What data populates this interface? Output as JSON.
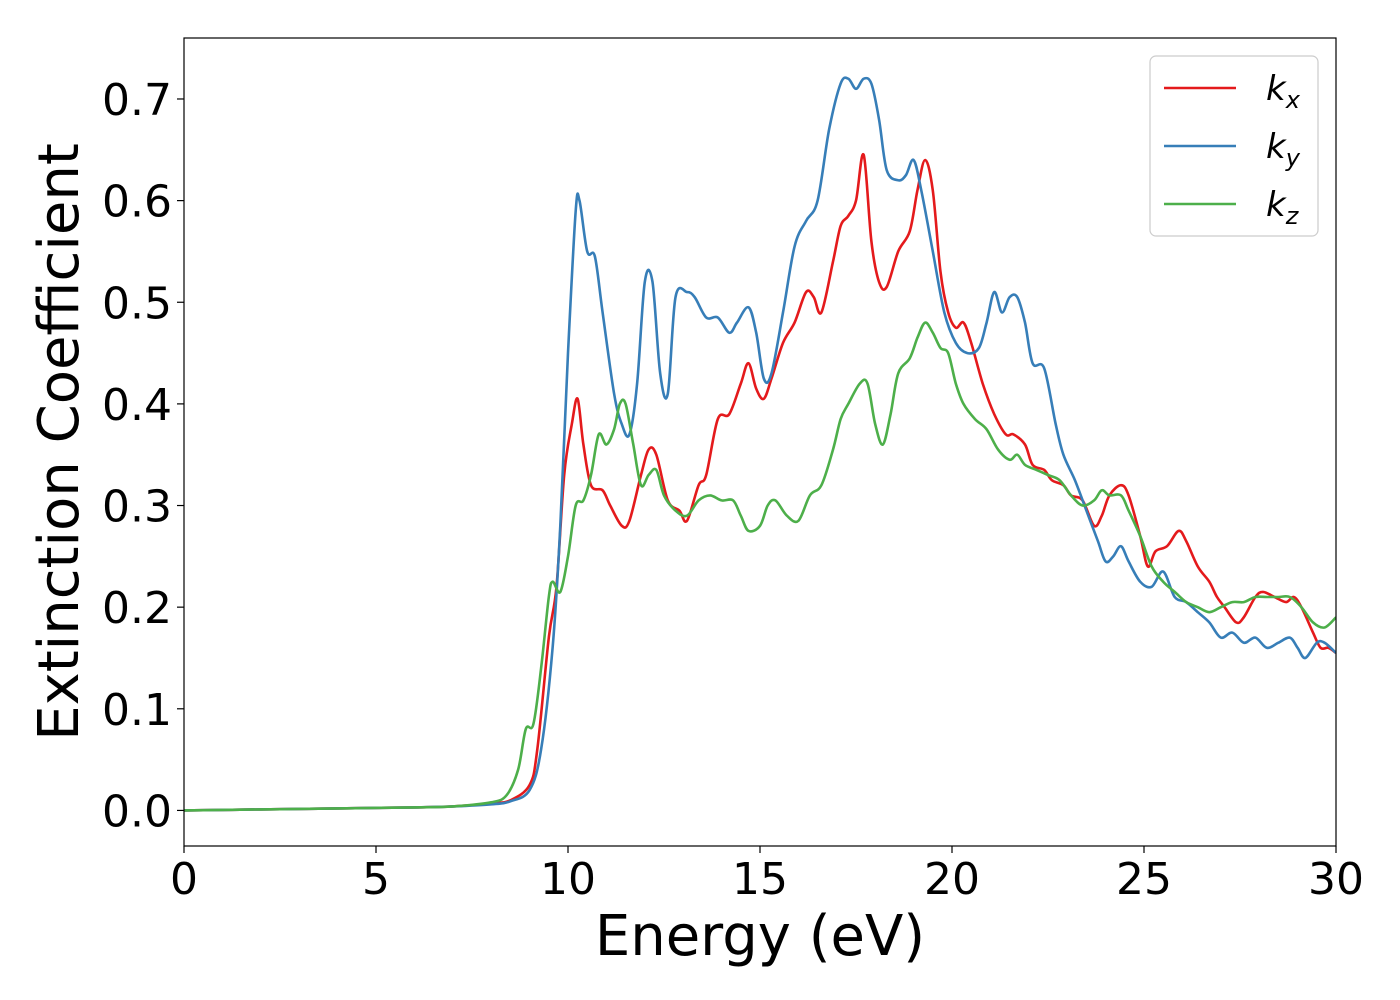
{
  "chart_data": {
    "type": "line",
    "xlabel": "Energy (eV)",
    "ylabel": "Extinction Coefficient",
    "xlim": [
      0,
      30
    ],
    "ylim": [
      -0.035,
      0.76
    ],
    "xticks": [
      0,
      5,
      10,
      15,
      20,
      25,
      30
    ],
    "xtick_labels": [
      "0",
      "5",
      "10",
      "15",
      "20",
      "25",
      "30"
    ],
    "yticks": [
      0.0,
      0.1,
      0.2,
      0.3,
      0.4,
      0.5,
      0.6,
      0.7
    ],
    "ytick_labels": [
      "0.0",
      "0.1",
      "0.2",
      "0.3",
      "0.4",
      "0.5",
      "0.6",
      "0.7"
    ],
    "grid": false,
    "legend_position": "top-right",
    "series": [
      {
        "name": "k",
        "subscript": "x",
        "color": "#e41a1c",
        "x": [
          0,
          2,
          4,
          6,
          7,
          8,
          8.5,
          9.0,
          9.2,
          9.5,
          9.7,
          9.9,
          10.1,
          10.25,
          10.4,
          10.6,
          10.9,
          11.1,
          11.4,
          11.6,
          11.9,
          12.1,
          12.3,
          12.6,
          12.9,
          13.1,
          13.4,
          13.6,
          13.9,
          14.2,
          14.5,
          14.7,
          14.9,
          15.1,
          15.3,
          15.6,
          15.9,
          16.2,
          16.4,
          16.6,
          16.9,
          17.1,
          17.3,
          17.5,
          17.7,
          17.9,
          18.1,
          18.3,
          18.6,
          18.9,
          19.1,
          19.3,
          19.5,
          19.7,
          19.9,
          20.1,
          20.3,
          20.5,
          20.8,
          21.1,
          21.4,
          21.6,
          21.9,
          22.1,
          22.4,
          22.6,
          22.9,
          23.1,
          23.4,
          23.7,
          23.9,
          24.1,
          24.4,
          24.6,
          24.9,
          25.1,
          25.3,
          25.6,
          25.9,
          26.1,
          26.4,
          26.7,
          26.9,
          27.1,
          27.4,
          27.6,
          27.9,
          28.1,
          28.4,
          28.7,
          28.9,
          29.1,
          29.4,
          29.6,
          29.8,
          30
        ],
        "y": [
          0,
          0.001,
          0.002,
          0.003,
          0.004,
          0.007,
          0.01,
          0.025,
          0.06,
          0.17,
          0.22,
          0.33,
          0.38,
          0.405,
          0.36,
          0.32,
          0.315,
          0.3,
          0.28,
          0.285,
          0.33,
          0.355,
          0.35,
          0.305,
          0.295,
          0.285,
          0.32,
          0.33,
          0.385,
          0.39,
          0.42,
          0.44,
          0.415,
          0.405,
          0.425,
          0.46,
          0.48,
          0.51,
          0.505,
          0.49,
          0.54,
          0.575,
          0.585,
          0.6,
          0.645,
          0.56,
          0.52,
          0.515,
          0.55,
          0.57,
          0.61,
          0.64,
          0.61,
          0.53,
          0.49,
          0.475,
          0.48,
          0.46,
          0.42,
          0.39,
          0.37,
          0.37,
          0.36,
          0.34,
          0.335,
          0.325,
          0.32,
          0.31,
          0.305,
          0.28,
          0.29,
          0.31,
          0.32,
          0.31,
          0.27,
          0.24,
          0.255,
          0.26,
          0.275,
          0.265,
          0.24,
          0.225,
          0.21,
          0.2,
          0.185,
          0.19,
          0.21,
          0.215,
          0.21,
          0.205,
          0.21,
          0.2,
          0.175,
          0.16,
          0.16,
          0.155
        ]
      },
      {
        "name": "k",
        "subscript": "y",
        "color": "#377eb8",
        "x": [
          0,
          2,
          4,
          6,
          7,
          8,
          8.5,
          9.0,
          9.3,
          9.6,
          9.8,
          10.0,
          10.2,
          10.3,
          10.5,
          10.7,
          10.9,
          11.2,
          11.4,
          11.6,
          11.8,
          12.0,
          12.2,
          12.4,
          12.6,
          12.8,
          13.1,
          13.3,
          13.6,
          13.9,
          14.2,
          14.4,
          14.7,
          14.9,
          15.1,
          15.3,
          15.6,
          15.9,
          16.2,
          16.5,
          16.8,
          17.1,
          17.3,
          17.5,
          17.7,
          17.9,
          18.1,
          18.3,
          18.6,
          18.8,
          19.0,
          19.2,
          19.5,
          19.8,
          20.1,
          20.4,
          20.7,
          20.9,
          21.1,
          21.3,
          21.5,
          21.7,
          21.9,
          22.1,
          22.4,
          22.7,
          22.9,
          23.2,
          23.5,
          23.8,
          24.0,
          24.2,
          24.4,
          24.6,
          24.9,
          25.2,
          25.5,
          25.8,
          26.1,
          26.4,
          26.7,
          27.0,
          27.3,
          27.6,
          27.9,
          28.2,
          28.5,
          28.8,
          29.0,
          29.2,
          29.5,
          29.7,
          30
        ],
        "y": [
          0,
          0.001,
          0.002,
          0.003,
          0.004,
          0.006,
          0.009,
          0.02,
          0.06,
          0.16,
          0.28,
          0.45,
          0.59,
          0.6,
          0.55,
          0.545,
          0.49,
          0.41,
          0.38,
          0.37,
          0.42,
          0.52,
          0.52,
          0.43,
          0.41,
          0.505,
          0.51,
          0.505,
          0.485,
          0.485,
          0.47,
          0.48,
          0.495,
          0.47,
          0.425,
          0.43,
          0.49,
          0.555,
          0.58,
          0.6,
          0.67,
          0.715,
          0.72,
          0.71,
          0.72,
          0.715,
          0.68,
          0.63,
          0.62,
          0.625,
          0.64,
          0.61,
          0.55,
          0.49,
          0.46,
          0.45,
          0.455,
          0.48,
          0.51,
          0.49,
          0.505,
          0.505,
          0.48,
          0.44,
          0.435,
          0.38,
          0.35,
          0.325,
          0.295,
          0.265,
          0.245,
          0.25,
          0.26,
          0.245,
          0.225,
          0.22,
          0.235,
          0.21,
          0.205,
          0.195,
          0.185,
          0.17,
          0.175,
          0.165,
          0.17,
          0.16,
          0.165,
          0.17,
          0.16,
          0.15,
          0.165,
          0.165,
          0.155
        ]
      },
      {
        "name": "k",
        "subscript": "z",
        "color": "#4daf4a",
        "x": [
          0,
          2,
          4,
          6,
          7,
          8,
          8.4,
          8.7,
          8.9,
          9.1,
          9.3,
          9.5,
          9.6,
          9.8,
          10.0,
          10.2,
          10.4,
          10.6,
          10.8,
          11.0,
          11.2,
          11.35,
          11.5,
          11.7,
          11.9,
          12.1,
          12.3,
          12.5,
          12.8,
          13.1,
          13.4,
          13.7,
          14.0,
          14.3,
          14.5,
          14.7,
          15.0,
          15.2,
          15.4,
          15.7,
          16.0,
          16.3,
          16.6,
          16.9,
          17.1,
          17.3,
          17.6,
          17.8,
          18.0,
          18.2,
          18.4,
          18.6,
          18.9,
          19.1,
          19.3,
          19.5,
          19.7,
          19.9,
          20.1,
          20.3,
          20.6,
          20.9,
          21.2,
          21.5,
          21.7,
          21.9,
          22.2,
          22.5,
          22.8,
          23.1,
          23.4,
          23.7,
          23.9,
          24.1,
          24.4,
          24.6,
          24.9,
          25.2,
          25.5,
          25.8,
          26.1,
          26.4,
          26.7,
          27.0,
          27.3,
          27.6,
          27.9,
          28.2,
          28.5,
          28.8,
          29.1,
          29.4,
          29.7,
          30
        ],
        "y": [
          0,
          0.001,
          0.002,
          0.003,
          0.004,
          0.008,
          0.015,
          0.04,
          0.08,
          0.085,
          0.14,
          0.21,
          0.225,
          0.215,
          0.25,
          0.3,
          0.305,
          0.33,
          0.37,
          0.36,
          0.375,
          0.4,
          0.4,
          0.36,
          0.32,
          0.33,
          0.335,
          0.31,
          0.295,
          0.29,
          0.305,
          0.31,
          0.305,
          0.305,
          0.29,
          0.275,
          0.28,
          0.3,
          0.305,
          0.29,
          0.285,
          0.31,
          0.32,
          0.355,
          0.385,
          0.4,
          0.42,
          0.42,
          0.38,
          0.36,
          0.39,
          0.43,
          0.445,
          0.465,
          0.48,
          0.47,
          0.455,
          0.45,
          0.42,
          0.4,
          0.385,
          0.375,
          0.355,
          0.345,
          0.35,
          0.34,
          0.335,
          0.33,
          0.325,
          0.31,
          0.3,
          0.305,
          0.315,
          0.31,
          0.31,
          0.295,
          0.27,
          0.24,
          0.225,
          0.215,
          0.205,
          0.2,
          0.195,
          0.2,
          0.205,
          0.205,
          0.21,
          0.21,
          0.21,
          0.21,
          0.2,
          0.185,
          0.18,
          0.19
        ]
      }
    ]
  }
}
